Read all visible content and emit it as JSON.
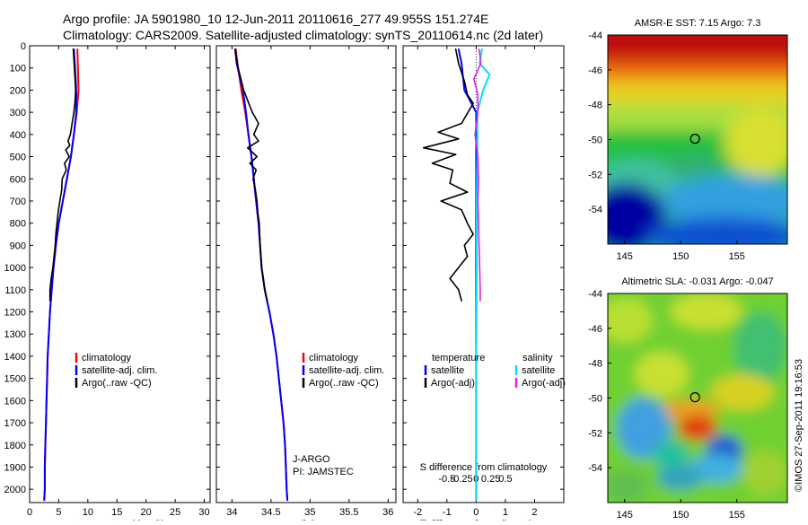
{
  "header": {
    "line1": "Argo profile: JA 5901980_10 12-Jun-2011 20110616_277 49.955S 151.274E",
    "line2": "Climatology: CARS2009. Satellite-adjusted climatology: synTS_20110614.nc (2d later)"
  },
  "credit": "©IMOS 27-Sep-2011 19:16:53",
  "colors": {
    "climatology": "#ff0000",
    "satellite": "#0000ff",
    "argo": "#000000",
    "sat_salinity": "#00e0ff",
    "argo_salinity": "#e020e0"
  },
  "chart_data": [
    {
      "type": "line",
      "id": "temperature",
      "xlabel": "temperature (deg C)",
      "xlim": [
        0,
        31
      ],
      "ylim": [
        2060,
        0
      ],
      "xticks": [
        "0",
        "5",
        "10",
        "15",
        "20",
        "25",
        "30"
      ],
      "yticks": [
        "0",
        "100",
        "200",
        "300",
        "400",
        "500",
        "600",
        "700",
        "800",
        "900",
        "1000",
        "1100",
        "1200",
        "1300",
        "1400",
        "1500",
        "1600",
        "1700",
        "1800",
        "1900",
        "2000"
      ],
      "legend": [
        "climatology",
        "satellite-adj. clim.",
        "Argo(..raw -QC)"
      ],
      "series": [
        {
          "name": "climatology",
          "color": "#ff0000",
          "points": [
            [
              8.2,
              15
            ],
            [
              8.3,
              100
            ],
            [
              8.4,
              200
            ],
            [
              8.1,
              300
            ],
            [
              7.6,
              400
            ],
            [
              7.1,
              500
            ],
            [
              6.4,
              600
            ],
            [
              5.7,
              700
            ],
            [
              5.0,
              800
            ],
            [
              4.5,
              900
            ],
            [
              4.1,
              1000
            ],
            [
              3.8,
              1100
            ],
            [
              3.5,
              1200
            ],
            [
              3.3,
              1300
            ],
            [
              3.1,
              1400
            ],
            [
              3.0,
              1500
            ],
            [
              2.9,
              1600
            ],
            [
              2.8,
              1700
            ],
            [
              2.7,
              1800
            ],
            [
              2.6,
              1900
            ],
            [
              2.6,
              2000
            ],
            [
              2.5,
              2050
            ]
          ]
        },
        {
          "name": "satellite-adj. clim.",
          "color": "#0000ff",
          "points": [
            [
              7.6,
              15
            ],
            [
              7.8,
              100
            ],
            [
              8.0,
              200
            ],
            [
              8.0,
              300
            ],
            [
              7.6,
              400
            ],
            [
              7.1,
              500
            ],
            [
              6.4,
              600
            ],
            [
              5.7,
              700
            ],
            [
              5.0,
              800
            ],
            [
              4.5,
              900
            ],
            [
              4.1,
              1000
            ],
            [
              3.8,
              1100
            ],
            [
              3.5,
              1200
            ],
            [
              3.3,
              1300
            ],
            [
              3.1,
              1400
            ],
            [
              3.0,
              1500
            ],
            [
              2.9,
              1600
            ],
            [
              2.8,
              1700
            ],
            [
              2.7,
              1800
            ],
            [
              2.6,
              1900
            ],
            [
              2.6,
              2000
            ],
            [
              2.5,
              2050
            ]
          ]
        },
        {
          "name": "Argo(..raw -QC)",
          "color": "#000000",
          "points": [
            [
              7.5,
              15
            ],
            [
              7.6,
              60
            ],
            [
              7.7,
              100
            ],
            [
              7.8,
              150
            ],
            [
              7.9,
              200
            ],
            [
              7.8,
              250
            ],
            [
              7.6,
              300
            ],
            [
              7.3,
              350
            ],
            [
              7.0,
              400
            ],
            [
              6.6,
              430
            ],
            [
              6.9,
              450
            ],
            [
              6.2,
              470
            ],
            [
              6.8,
              500
            ],
            [
              6.0,
              530
            ],
            [
              6.3,
              560
            ],
            [
              5.6,
              600
            ],
            [
              5.5,
              650
            ],
            [
              5.2,
              700
            ],
            [
              4.9,
              750
            ],
            [
              4.7,
              800
            ],
            [
              4.5,
              850
            ],
            [
              4.4,
              900
            ],
            [
              4.2,
              950
            ],
            [
              4.0,
              1000
            ],
            [
              3.7,
              1050
            ],
            [
              3.5,
              1100
            ],
            [
              3.5,
              1150
            ]
          ]
        }
      ]
    },
    {
      "type": "line",
      "id": "salinity",
      "xlabel": "salinity",
      "xlim": [
        33.8,
        36.1
      ],
      "ylim": [
        2060,
        0
      ],
      "xticks": [
        "34",
        "34.5",
        "35",
        "35.5",
        "36"
      ],
      "legend": [
        "climatology",
        "satellite-adj. clim.",
        "Argo(..raw -QC)"
      ],
      "annotations": [
        "J-ARGO",
        "PI: JAMSTEC"
      ],
      "series": [
        {
          "name": "climatology",
          "color": "#ff0000",
          "points": [
            [
              34.05,
              15
            ],
            [
              34.07,
              80
            ],
            [
              34.12,
              200
            ],
            [
              34.17,
              300
            ],
            [
              34.21,
              400
            ],
            [
              34.25,
              500
            ],
            [
              34.28,
              600
            ],
            [
              34.31,
              700
            ],
            [
              34.34,
              800
            ],
            [
              34.36,
              900
            ],
            [
              34.38,
              1000
            ],
            [
              34.42,
              1100
            ],
            [
              34.48,
              1200
            ],
            [
              34.53,
              1300
            ],
            [
              34.57,
              1400
            ],
            [
              34.6,
              1500
            ],
            [
              34.63,
              1600
            ],
            [
              34.66,
              1700
            ],
            [
              34.68,
              1800
            ],
            [
              34.69,
              1900
            ],
            [
              34.7,
              2000
            ],
            [
              34.71,
              2050
            ]
          ]
        },
        {
          "name": "satellite-adj. clim.",
          "color": "#0000ff",
          "points": [
            [
              34.04,
              15
            ],
            [
              34.06,
              80
            ],
            [
              34.14,
              200
            ],
            [
              34.18,
              300
            ],
            [
              34.21,
              400
            ],
            [
              34.25,
              500
            ],
            [
              34.28,
              600
            ],
            [
              34.31,
              700
            ],
            [
              34.34,
              800
            ],
            [
              34.36,
              900
            ],
            [
              34.38,
              1000
            ],
            [
              34.42,
              1100
            ],
            [
              34.48,
              1200
            ],
            [
              34.53,
              1300
            ],
            [
              34.57,
              1400
            ],
            [
              34.6,
              1500
            ],
            [
              34.63,
              1600
            ],
            [
              34.66,
              1700
            ],
            [
              34.68,
              1800
            ],
            [
              34.69,
              1900
            ],
            [
              34.7,
              2000
            ],
            [
              34.71,
              2050
            ]
          ]
        },
        {
          "name": "Argo(..raw -QC)",
          "color": "#000000",
          "points": [
            [
              34.04,
              15
            ],
            [
              34.08,
              100
            ],
            [
              34.15,
              200
            ],
            [
              34.26,
              300
            ],
            [
              34.34,
              350
            ],
            [
              34.28,
              400
            ],
            [
              34.34,
              430
            ],
            [
              34.2,
              460
            ],
            [
              34.32,
              500
            ],
            [
              34.23,
              530
            ],
            [
              34.31,
              560
            ],
            [
              34.27,
              600
            ],
            [
              34.3,
              650
            ],
            [
              34.32,
              700
            ],
            [
              34.33,
              750
            ],
            [
              34.35,
              800
            ],
            [
              34.36,
              900
            ],
            [
              34.38,
              1000
            ],
            [
              34.42,
              1100
            ],
            [
              34.45,
              1150
            ]
          ]
        }
      ]
    },
    {
      "type": "line",
      "id": "difference",
      "xlabel": "T difference from climatology",
      "xlabel_top": "S difference from climatology",
      "xlim": [
        -2.5,
        3.0
      ],
      "ylim": [
        2060,
        0
      ],
      "xticks": [
        "-2",
        "-1",
        "0",
        "1",
        "2"
      ],
      "xticks_top": [
        "-0.5",
        "-0.25",
        "0",
        "0.25",
        "0.5"
      ],
      "legend_headers": [
        "temperature",
        "salinity"
      ],
      "legend": [
        "satellite",
        "Argo(-adj)",
        "satellite",
        "Argo(-adj)"
      ],
      "series": [
        {
          "name": "satellite",
          "group": "temperature",
          "color": "#0000ff",
          "points": [
            [
              -0.6,
              15
            ],
            [
              -0.5,
              80
            ],
            [
              -0.4,
              200
            ],
            [
              0.0,
              300
            ],
            [
              0.0,
              600
            ],
            [
              0.0,
              800
            ],
            [
              0.0,
              2050
            ]
          ]
        },
        {
          "name": "Argo(-adj)",
          "group": "temperature",
          "color": "#000000",
          "points": [
            [
              -0.7,
              15
            ],
            [
              -0.6,
              80
            ],
            [
              -0.4,
              160
            ],
            [
              -0.3,
              220
            ],
            [
              -0.1,
              260
            ],
            [
              -0.5,
              350
            ],
            [
              -1.3,
              390
            ],
            [
              -0.6,
              420
            ],
            [
              -1.8,
              460
            ],
            [
              -0.7,
              490
            ],
            [
              -1.5,
              530
            ],
            [
              -0.8,
              560
            ],
            [
              -0.9,
              620
            ],
            [
              -0.3,
              660
            ],
            [
              -1.2,
              700
            ],
            [
              -0.5,
              740
            ],
            [
              -0.3,
              800
            ],
            [
              -0.1,
              850
            ],
            [
              -0.4,
              900
            ],
            [
              -0.3,
              950
            ],
            [
              -0.6,
              1000
            ],
            [
              -0.9,
              1050
            ],
            [
              -0.6,
              1100
            ],
            [
              -0.5,
              1150
            ]
          ]
        },
        {
          "name": "satellite",
          "group": "salinity",
          "color": "#00e0ff",
          "points": [
            [
              0.1,
              15
            ],
            [
              0.06,
              80
            ],
            [
              0.23,
              130
            ],
            [
              0.12,
              200
            ],
            [
              0.02,
              300
            ],
            [
              0.02,
              500
            ],
            [
              0.01,
              700
            ],
            [
              0.01,
              1000
            ],
            [
              0.0,
              1500
            ],
            [
              0.0,
              2050
            ]
          ]
        },
        {
          "name": "Argo(-adj)",
          "group": "salinity",
          "color": "#e020e0",
          "points": [
            [
              0.05,
              15
            ],
            [
              0.08,
              80
            ],
            [
              -0.04,
              150
            ],
            [
              0.03,
              220
            ],
            [
              0.03,
              300
            ],
            [
              -0.02,
              400
            ],
            [
              0.03,
              500
            ],
            [
              0.04,
              600
            ],
            [
              0.03,
              700
            ],
            [
              0.04,
              800
            ],
            [
              0.05,
              900
            ],
            [
              0.06,
              1000
            ],
            [
              0.07,
              1100
            ],
            [
              0.07,
              1150
            ]
          ]
        }
      ]
    },
    {
      "type": "heatmap",
      "id": "sst-map",
      "title": "AMSR-E SST: 7.15 Argo: 7.3",
      "xlim": [
        143.5,
        159.5
      ],
      "ylim": [
        -56,
        -44
      ],
      "xticks": [
        "145",
        "150",
        "155"
      ],
      "yticks": [
        "-44",
        "-46",
        "-48",
        "-50",
        "-52",
        "-54"
      ],
      "marker": {
        "lon": 151.274,
        "lat": -49.955
      }
    },
    {
      "type": "heatmap",
      "id": "sla-map",
      "title": "Altimetric SLA: -0.031 Argo: -0.047",
      "xlim": [
        143.5,
        159.5
      ],
      "ylim": [
        -56,
        -44
      ],
      "xticks": [
        "145",
        "150",
        "155"
      ],
      "yticks": [
        "-44",
        "-46",
        "-48",
        "-50",
        "-52",
        "-54"
      ],
      "marker": {
        "lon": 151.274,
        "lat": -49.955
      }
    }
  ]
}
